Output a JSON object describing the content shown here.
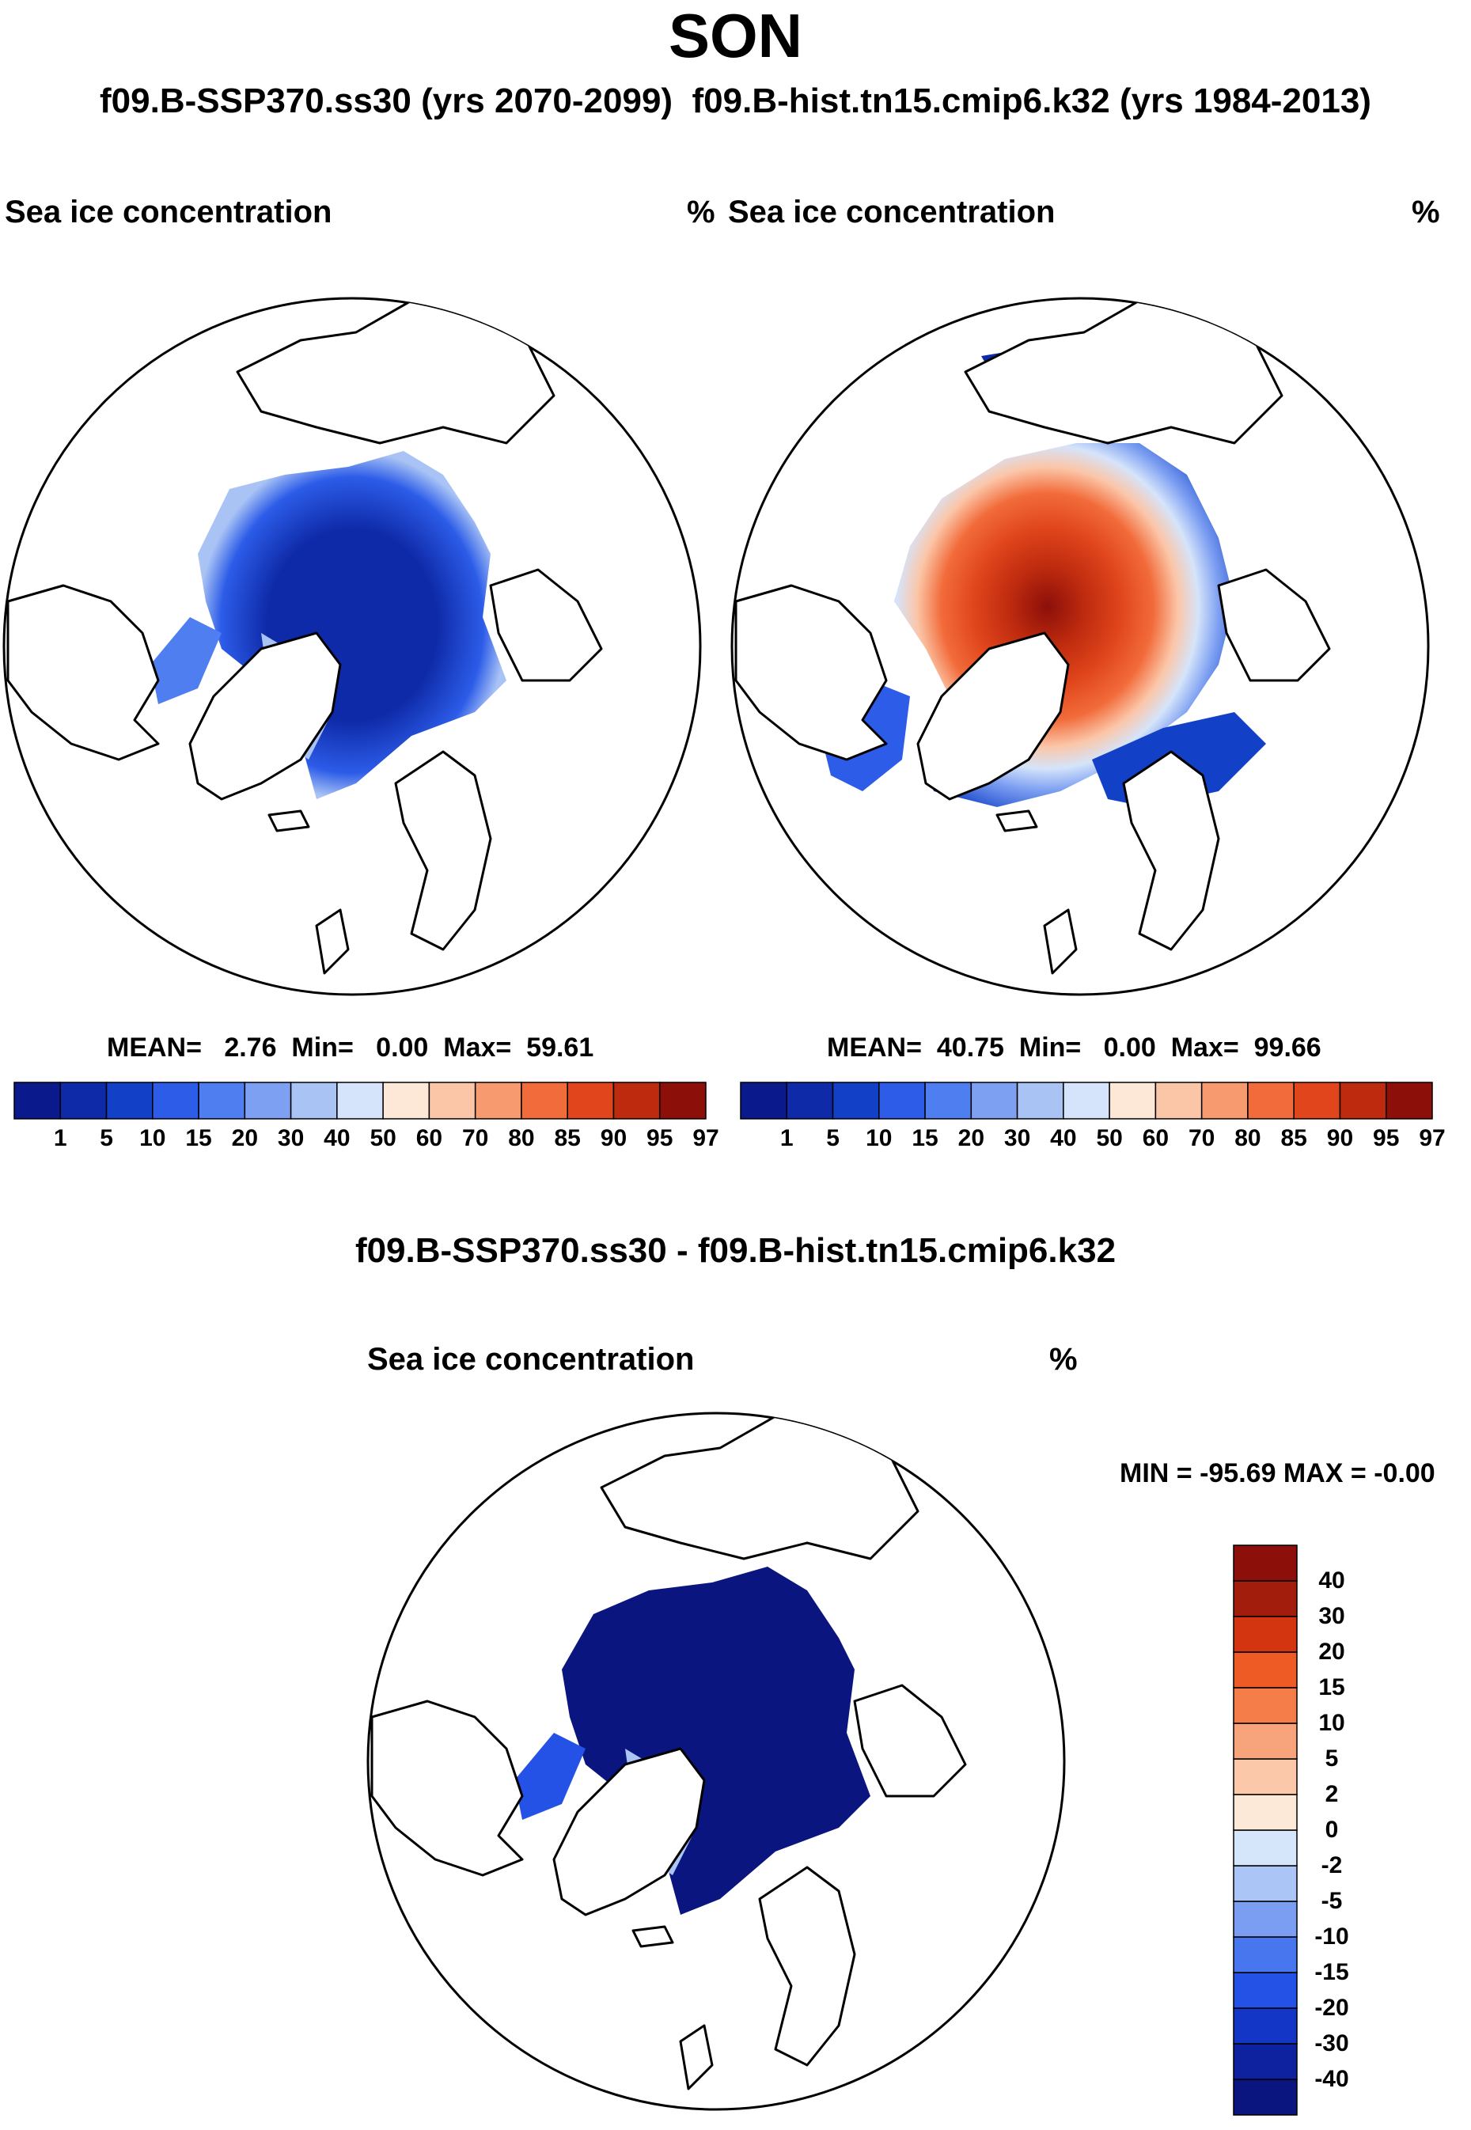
{
  "title": "SON",
  "subtitle_left": "f09.B-SSP370.ss30 (yrs 2070-2099)",
  "subtitle_right": "f09.B-hist.tn15.cmip6.k32 (yrs 1984-2013)",
  "colors": {
    "seq": [
      "#0a1a8c",
      "#0e2aa8",
      "#1241c8",
      "#2c5ce8",
      "#4f7ef0",
      "#7ea0f2",
      "#a9c3f5",
      "#d5e4fa",
      "#fde7d6",
      "#fbc6a8",
      "#f79a70",
      "#f26b3a",
      "#e0451c",
      "#bd2a0e",
      "#8c0f0a"
    ],
    "diff": [
      "#0a1580",
      "#0e22a0",
      "#1336c6",
      "#2552e6",
      "#4876ef",
      "#7c9ef2",
      "#abc5f6",
      "#d6e6fa",
      "#fde9d8",
      "#fbc8aa",
      "#f7a47c",
      "#f47d4a",
      "#ef5b25",
      "#d33510",
      "#a31d0c",
      "#8c0f0a"
    ]
  },
  "panel_left": {
    "var_label": "Sea ice concentration",
    "units": "%",
    "stats": {
      "mean_label": "MEAN=",
      "mean": "2.76",
      "min_label": "Min=",
      "min": "0.00",
      "max_label": "Max=",
      "max": "59.61"
    }
  },
  "panel_right": {
    "var_label": "Sea ice concentration",
    "units": "%",
    "stats": {
      "mean_label": "MEAN=",
      "mean": "40.75",
      "min_label": "Min=",
      "min": "0.00",
      "max_label": "Max=",
      "max": "99.66"
    }
  },
  "seq_levels": [
    "1",
    "5",
    "10",
    "15",
    "20",
    "30",
    "40",
    "50",
    "60",
    "70",
    "80",
    "85",
    "90",
    "95",
    "97"
  ],
  "diff_title": "f09.B-SSP370.ss30 - f09.B-hist.tn15.cmip6.k32",
  "panel_diff": {
    "var_label": "Sea ice concentration",
    "units": "%",
    "minmax": "MIN = -95.69 MAX =  -0.00"
  },
  "diff_levels": [
    "40",
    "30",
    "20",
    "15",
    "10",
    "5",
    "2",
    "0",
    "-2",
    "-5",
    "-10",
    "-15",
    "-20",
    "-30",
    "-40"
  ]
}
